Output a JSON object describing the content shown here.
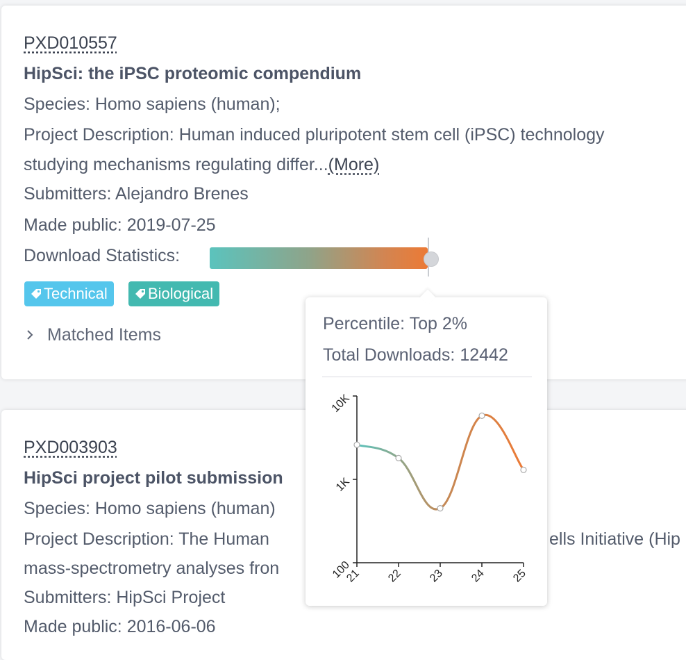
{
  "results": [
    {
      "accession": "PXD010557",
      "title": "HipSci: the iPSC proteomic compendium",
      "species": "Species: Homo sapiens (human);",
      "description_line1": "Project Description: Human induced pluripotent stem cell (iPSC) technology",
      "description_line2": "studying mechanisms regulating differ...",
      "more_label": "(More)",
      "submitters": "Submitters: Alejandro Brenes",
      "made_public": "Made public: 2019-07-25",
      "download_label": "Download Statistics:",
      "download_percentile_fraction": 0.98,
      "tags": [
        {
          "label": "Technical",
          "color": "#55c6ec"
        },
        {
          "label": "Biological",
          "color": "#43b9b0"
        }
      ],
      "matched_items_label": "Matched Items"
    },
    {
      "accession": "PXD003903",
      "title": "HipSci project pilot submission",
      "species": "Species: Homo sapiens (human)",
      "description_line1": "Project Description: The Human",
      "description_line1_right": "ells Initiative (Hip",
      "description_line2": "mass-spectrometry analyses fron",
      "submitters": "Submitters: HipSci Project",
      "made_public": "Made public: 2016-06-06"
    }
  ],
  "tooltip": {
    "percentile": "Percentile: Top 2%",
    "total_downloads": "Total Downloads: 12442"
  },
  "chart_data": {
    "type": "line",
    "x": [
      "21",
      "22",
      "23",
      "24",
      "25"
    ],
    "values": [
      2600,
      1800,
      450,
      5800,
      1300
    ],
    "yscale": "log",
    "ylim": [
      100,
      10000
    ],
    "yticks": [
      "100",
      "1K",
      "10K"
    ],
    "title": "",
    "xlabel": "",
    "ylabel": "",
    "gradient": [
      "#5bc3bd",
      "#c28a58",
      "#ec7a35"
    ]
  }
}
